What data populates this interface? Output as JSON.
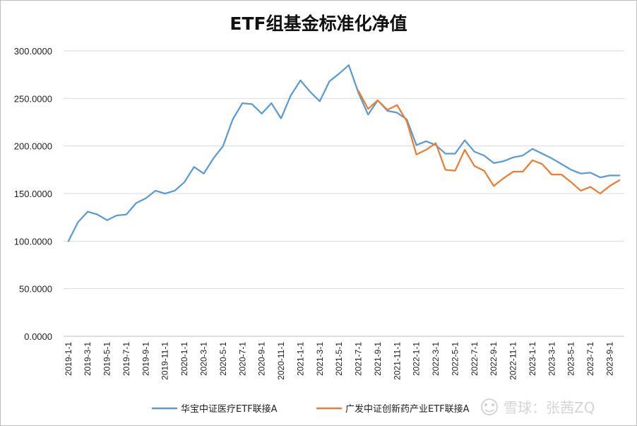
{
  "chart_data": {
    "type": "line",
    "title": "ETF组基金标准化净值",
    "xlabel": "",
    "ylabel": "",
    "ylim": [
      0,
      300
    ],
    "grid": true,
    "legend_position": "bottom",
    "y_ticks": [
      "0.0000",
      "50.0000",
      "100.0000",
      "150.0000",
      "200.0000",
      "250.0000",
      "300.0000"
    ],
    "x_tick_labels": [
      "2019-1-1",
      "2019-3-1",
      "2019-5-1",
      "2019-7-1",
      "2019-9-1",
      "2019-11-1",
      "2020-1-1",
      "2020-3-1",
      "2020-5-1",
      "2020-7-1",
      "2020-9-1",
      "2020-11-1",
      "2021-1-1",
      "2021-3-1",
      "2021-5-1",
      "2021-7-1",
      "2021-9-1",
      "2021-11-1",
      "2022-1-1",
      "2022-3-1",
      "2022-5-1",
      "2022-7-1",
      "2022-9-1",
      "2022-11-1",
      "2023-1-1",
      "2023-3-1",
      "2023-5-1",
      "2023-7-1",
      "2023-9-1"
    ],
    "x": [
      "2019-1-1",
      "2019-2-1",
      "2019-3-1",
      "2019-4-1",
      "2019-5-1",
      "2019-6-1",
      "2019-7-1",
      "2019-8-1",
      "2019-9-1",
      "2019-10-1",
      "2019-11-1",
      "2019-12-1",
      "2020-1-1",
      "2020-2-1",
      "2020-3-1",
      "2020-4-1",
      "2020-5-1",
      "2020-6-1",
      "2020-7-1",
      "2020-8-1",
      "2020-9-1",
      "2020-10-1",
      "2020-11-1",
      "2020-12-1",
      "2021-1-1",
      "2021-2-1",
      "2021-3-1",
      "2021-4-1",
      "2021-5-1",
      "2021-6-1",
      "2021-7-1",
      "2021-8-1",
      "2021-9-1",
      "2021-10-1",
      "2021-11-1",
      "2021-12-1",
      "2022-1-1",
      "2022-2-1",
      "2022-3-1",
      "2022-4-1",
      "2022-5-1",
      "2022-6-1",
      "2022-7-1",
      "2022-8-1",
      "2022-9-1",
      "2022-10-1",
      "2022-11-1",
      "2022-12-1",
      "2023-1-1",
      "2023-2-1",
      "2023-3-1",
      "2023-4-1",
      "2023-5-1",
      "2023-6-1",
      "2023-7-1",
      "2023-8-1",
      "2023-9-1",
      "2023-10-1"
    ],
    "series": [
      {
        "name": "华宝中证医疗ETF联接A",
        "color": "#5B9BD5",
        "values": [
          100,
          120,
          131,
          128,
          122,
          127,
          128,
          140,
          145,
          153,
          150,
          153,
          162,
          178,
          171,
          187,
          200,
          228,
          245,
          244,
          234,
          245,
          229,
          253,
          269,
          257,
          247,
          268,
          276,
          285,
          256,
          233,
          248,
          237,
          235,
          228,
          201,
          205,
          201,
          192,
          192,
          206,
          194,
          190,
          182,
          184,
          188,
          190,
          197,
          192,
          187,
          181,
          175,
          171,
          172,
          167,
          169,
          169
        ]
      },
      {
        "name": "广发中证创新药产业ETF联接A",
        "color": "#ED7D31",
        "values": [
          null,
          null,
          null,
          null,
          null,
          null,
          null,
          null,
          null,
          null,
          null,
          null,
          null,
          null,
          null,
          null,
          null,
          null,
          null,
          null,
          null,
          null,
          null,
          null,
          null,
          null,
          null,
          null,
          null,
          null,
          258,
          239,
          248,
          238,
          243,
          226,
          191,
          196,
          203,
          175,
          174,
          196,
          179,
          174,
          158,
          166,
          173,
          173,
          185,
          181,
          170,
          170,
          162,
          153,
          157,
          150,
          158,
          164
        ]
      }
    ]
  },
  "watermark": {
    "icon": "snowball-logo-icon",
    "text": "雪球：张茜ZQ"
  }
}
